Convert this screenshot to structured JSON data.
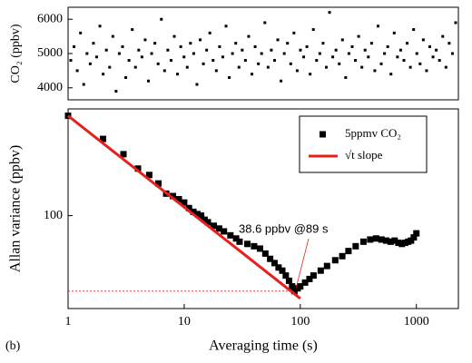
{
  "chart_data": [
    {
      "type": "scatter",
      "ylabel": "CO₂ (ppbv)",
      "color": "#000000",
      "ylim": [
        3650,
        6350
      ],
      "yticks": [
        4000,
        5000,
        6000
      ],
      "values": [
        4800,
        5200,
        4500,
        5600,
        4100,
        5000,
        4700,
        5300,
        4900,
        5800,
        4400,
        5100,
        4600,
        5500,
        3900,
        5000,
        5200,
        4300,
        4800,
        5700,
        4600,
        5100,
        4900,
        5400,
        4200,
        5000,
        5300,
        4700,
        6000,
        4500,
        5100,
        4800,
        5500,
        4400,
        5200,
        4900,
        4600,
        5300,
        5000,
        4100,
        5400,
        4700,
        5100,
        5600,
        4800,
        4500,
        5200,
        4900,
        5800,
        4300,
        5000,
        5300,
        4600,
        5100,
        4800,
        5500,
        4400,
        5200,
        4700,
        5000,
        5900,
        4600,
        5100,
        4800,
        5400,
        4200,
        5000,
        5300,
        4700,
        5600,
        4500,
        5100,
        4900,
        5200,
        4400,
        5700,
        4800,
        5000,
        5300,
        4600,
        6200,
        4900,
        5100,
        4700,
        5400,
        4300,
        5000,
        5200,
        4800,
        5500,
        4600,
        5100,
        4900,
        5300,
        4500,
        5800,
        4700,
        5000,
        5200,
        4400,
        5600,
        4900,
        5100,
        4800,
        5300,
        4600,
        5700,
        5000,
        4700,
        5400,
        4500,
        5200,
        4900,
        5100,
        4800,
        5500,
        4600,
        5300,
        5000,
        5900
      ]
    },
    {
      "type": "scatter",
      "xlabel": "Averaging time (s)",
      "ylabel": "Allan variance (ppbv)",
      "label": "(b)",
      "log_x": true,
      "log_y": true,
      "xlim": [
        1,
        2300
      ],
      "xticks": [
        1,
        10,
        100,
        1000
      ],
      "ylim": [
        31,
        384
      ],
      "yticks": [
        100
      ],
      "series": [
        {
          "name": "5ppmv CO₂",
          "color": "#000000",
          "mode": "markers",
          "x": [
            1,
            2,
            3,
            4,
            5,
            6,
            7,
            8,
            9,
            10,
            11,
            12,
            13,
            14,
            15,
            16,
            18,
            20,
            22,
            25,
            28,
            30,
            35,
            40,
            45,
            50,
            55,
            60,
            65,
            70,
            75,
            80,
            85,
            89,
            95,
            100,
            110,
            120,
            130,
            150,
            170,
            200,
            230,
            260,
            300,
            350,
            400,
            450,
            500,
            550,
            600,
            650,
            700,
            750,
            800,
            850,
            900,
            950,
            1000
          ],
          "values": [
            352,
            263,
            217,
            181,
            167,
            150,
            132,
            128,
            123,
            118,
            110,
            105,
            102,
            100,
            95,
            92,
            88,
            85,
            82,
            78,
            75,
            72,
            70,
            68,
            66,
            62,
            58,
            55,
            52,
            50,
            47,
            44,
            41,
            38.6,
            40,
            41,
            43,
            45,
            47,
            50,
            53,
            57,
            60,
            64,
            68,
            72,
            74,
            75,
            74,
            73,
            72,
            73,
            71,
            70,
            71,
            72,
            73,
            76,
            80
          ]
        },
        {
          "name": "√t slope",
          "color": "#e8201c",
          "mode": "line",
          "x": [
            1,
            100
          ],
          "values": [
            352,
            35.2
          ]
        }
      ],
      "annotation": {
        "text": "38.6 ppbv @89 s",
        "x": 89,
        "y": 38.6
      }
    }
  ]
}
